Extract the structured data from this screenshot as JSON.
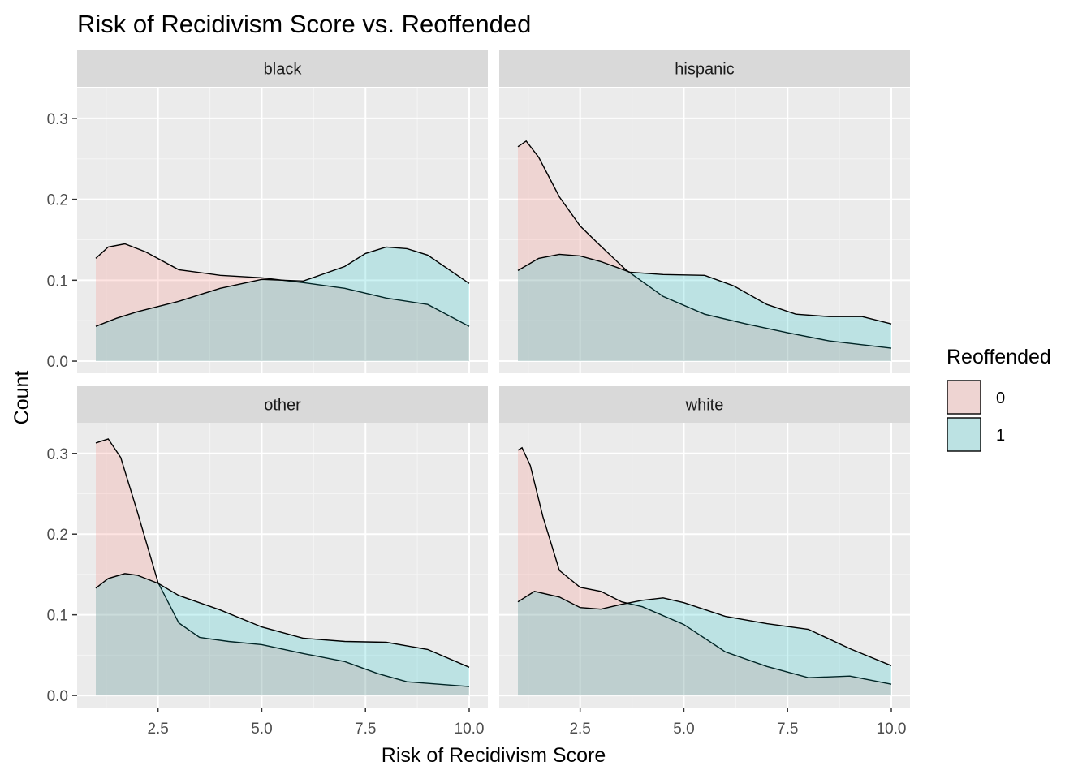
{
  "chart_data": {
    "type": "area",
    "title": "Risk of Recidivism Score vs. Reoffended",
    "xlabel": "Risk of Recidivism Score",
    "ylabel": "Count",
    "xlim": [
      0.55,
      10.45
    ],
    "ylim": [
      -0.015,
      0.338
    ],
    "x_ticks": [
      2.5,
      5.0,
      7.5,
      10.0
    ],
    "x_tick_labels": [
      "2.5",
      "5.0",
      "7.5",
      "10.0"
    ],
    "y_ticks": [
      0.0,
      0.1,
      0.2,
      0.3
    ],
    "y_tick_labels": [
      "0.0",
      "0.1",
      "0.2",
      "0.3"
    ],
    "grid": true,
    "legend": {
      "title": "Reoffended",
      "placement": "right",
      "entries": [
        {
          "label": "0",
          "fill": "#F8766D"
        },
        {
          "label": "1",
          "fill": "#00BFC4"
        }
      ]
    },
    "facets": [
      {
        "label": "black",
        "series": [
          {
            "name": "0",
            "x": [
              1.0,
              1.3,
              1.7,
              2.2,
              3.0,
              4.0,
              5.0,
              6.0,
              7.0,
              8.0,
              9.0,
              10.0
            ],
            "y": [
              0.127,
              0.141,
              0.145,
              0.135,
              0.113,
              0.106,
              0.103,
              0.097,
              0.09,
              0.078,
              0.07,
              0.043
            ]
          },
          {
            "name": "1",
            "x": [
              1.0,
              1.5,
              2.0,
              3.0,
              4.0,
              5.0,
              6.0,
              7.0,
              7.5,
              8.0,
              8.5,
              9.0,
              10.0
            ],
            "y": [
              0.043,
              0.053,
              0.061,
              0.074,
              0.09,
              0.101,
              0.099,
              0.117,
              0.133,
              0.141,
              0.139,
              0.131,
              0.096
            ]
          }
        ]
      },
      {
        "label": "hispanic",
        "series": [
          {
            "name": "0",
            "x": [
              1.0,
              1.2,
              1.5,
              2.0,
              2.5,
              3.0,
              3.6,
              4.5,
              5.5,
              6.5,
              7.5,
              8.5,
              10.0
            ],
            "y": [
              0.265,
              0.272,
              0.252,
              0.203,
              0.167,
              0.142,
              0.113,
              0.08,
              0.058,
              0.046,
              0.035,
              0.025,
              0.016
            ]
          },
          {
            "name": "1",
            "x": [
              1.0,
              1.5,
              2.0,
              2.5,
              3.0,
              3.7,
              4.5,
              5.5,
              6.2,
              7.0,
              7.7,
              8.5,
              9.3,
              10.0
            ],
            "y": [
              0.112,
              0.127,
              0.132,
              0.13,
              0.123,
              0.11,
              0.107,
              0.106,
              0.093,
              0.07,
              0.058,
              0.055,
              0.055,
              0.046
            ]
          }
        ]
      },
      {
        "label": "other",
        "series": [
          {
            "name": "0",
            "x": [
              1.0,
              1.3,
              1.6,
              2.0,
              2.5,
              3.0,
              3.5,
              4.2,
              5.0,
              6.0,
              7.0,
              7.8,
              8.5,
              10.0
            ],
            "y": [
              0.313,
              0.318,
              0.295,
              0.228,
              0.14,
              0.09,
              0.072,
              0.067,
              0.063,
              0.052,
              0.042,
              0.027,
              0.017,
              0.011
            ]
          },
          {
            "name": "1",
            "x": [
              1.0,
              1.3,
              1.7,
              2.0,
              2.5,
              3.0,
              4.0,
              5.0,
              6.0,
              7.0,
              8.0,
              9.0,
              10.0
            ],
            "y": [
              0.133,
              0.145,
              0.151,
              0.149,
              0.139,
              0.124,
              0.106,
              0.085,
              0.071,
              0.067,
              0.066,
              0.057,
              0.035
            ]
          }
        ]
      },
      {
        "label": "white",
        "series": [
          {
            "name": "0",
            "x": [
              1.0,
              1.1,
              1.3,
              1.6,
              2.0,
              2.5,
              3.0,
              3.5,
              4.0,
              5.0,
              6.0,
              7.0,
              8.0,
              9.0,
              10.0
            ],
            "y": [
              0.304,
              0.307,
              0.285,
              0.222,
              0.155,
              0.134,
              0.129,
              0.116,
              0.11,
              0.088,
              0.054,
              0.036,
              0.022,
              0.024,
              0.014
            ]
          },
          {
            "name": "1",
            "x": [
              1.0,
              1.4,
              2.0,
              2.5,
              3.0,
              3.5,
              4.0,
              4.5,
              5.0,
              6.0,
              7.0,
              8.0,
              9.0,
              10.0
            ],
            "y": [
              0.116,
              0.129,
              0.122,
              0.109,
              0.107,
              0.113,
              0.118,
              0.121,
              0.115,
              0.098,
              0.089,
              0.082,
              0.058,
              0.037
            ]
          }
        ]
      }
    ]
  }
}
